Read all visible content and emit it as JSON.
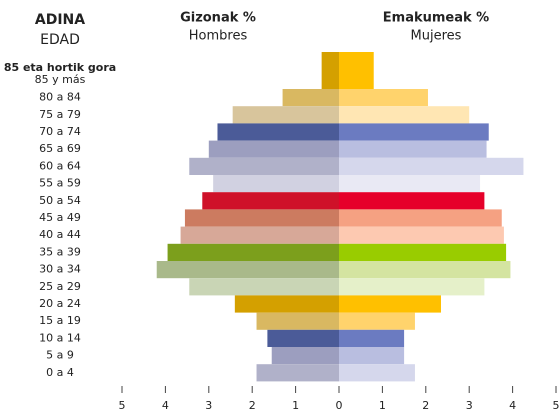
{
  "chart_data": {
    "type": "pyramid",
    "axis_title": "ADINA",
    "axis_subtitle": "EDAD",
    "first_category_note": "85 eta hortik gora",
    "categories": [
      "85 y más",
      "80 a 84",
      "75 a 79",
      "70 a 74",
      "65 a 69",
      "60 a 64",
      "55 a 59",
      "50 a 54",
      "45 a 49",
      "40 a 44",
      "35 a 39",
      "30 a 34",
      "25 a 29",
      "20 a 24",
      "15 a 19",
      "10 a 14",
      "5 a 9",
      "0 a 4"
    ],
    "series": [
      {
        "name": "Gizonak %",
        "subname": "Hombres",
        "side": "left",
        "values": [
          0.4,
          1.3,
          2.45,
          2.8,
          3.0,
          3.45,
          2.9,
          3.15,
          3.55,
          3.65,
          3.95,
          4.2,
          3.45,
          2.4,
          1.9,
          1.65,
          1.55,
          1.9
        ],
        "colors": [
          "#d4a000",
          "#d9b861",
          "#d8c59c",
          "#4b5b98",
          "#9c9ebf",
          "#b0b1c9",
          "#d1d1e1",
          "#cf1129",
          "#cc7b60",
          "#d7a898",
          "#7c9f1c",
          "#a9b98a",
          "#c9d5b5",
          "#d4a000",
          "#d9b861",
          "#4b5b98",
          "#9c9ebf",
          "#b0b1c9"
        ]
      },
      {
        "name": "Emakumeak %",
        "subname": "Mujeres",
        "side": "right",
        "values": [
          0.8,
          2.05,
          3.0,
          3.45,
          3.4,
          4.25,
          3.25,
          3.35,
          3.75,
          3.8,
          3.85,
          3.95,
          3.35,
          2.35,
          1.75,
          1.5,
          1.5,
          1.75
        ],
        "colors": [
          "#ffc000",
          "#ffd36c",
          "#ffe6b3",
          "#6b7bc1",
          "#b9bee0",
          "#d5d7ec",
          "#e9e9f4",
          "#e6002a",
          "#f5a182",
          "#fdc9b1",
          "#99cc00",
          "#d4e4a1",
          "#e5f0c9",
          "#ffc000",
          "#ffd36c",
          "#6b7bc1",
          "#b9bee0",
          "#d5d7ec"
        ]
      }
    ],
    "xlim": [
      -5,
      5
    ],
    "xticks": [
      {
        "value": -5,
        "label": "5"
      },
      {
        "value": -4,
        "label": "4"
      },
      {
        "value": -3,
        "label": "3"
      },
      {
        "value": -2,
        "label": "2"
      },
      {
        "value": -1,
        "label": "1"
      },
      0,
      1,
      2,
      3,
      4,
      5
    ]
  }
}
